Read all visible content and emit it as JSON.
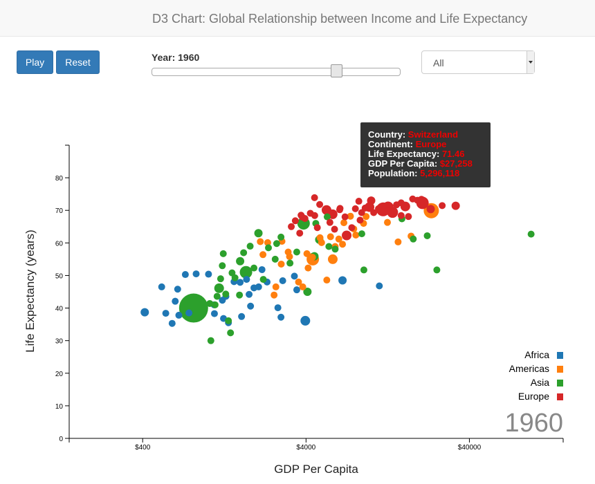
{
  "header": {
    "title": "D3 Chart: Global Relationship between Income and Life Expectancy"
  },
  "controls": {
    "play_label": "Play",
    "reset_label": "Reset",
    "year_label": "Year: 1960",
    "slider_value": 1960,
    "continent_select": "All"
  },
  "tooltip": {
    "country_label": "Country:",
    "country": "Switzerland",
    "continent_label": "Continent:",
    "continent": "Europe",
    "life_label": "Life Expectancy:",
    "life": "71.46",
    "gdp_label": "GDP Per Capita:",
    "gdp": "$27,258",
    "pop_label": "Population:",
    "pop": "5,296,118"
  },
  "colors": {
    "Africa": "#1f77b4",
    "Americas": "#ff7f0e",
    "Asia": "#2ca02c",
    "Europe": "#d62728"
  },
  "chart_data": {
    "type": "scatter",
    "xlabel": "GDP Per Capita",
    "ylabel": "Life Expectancy (years)",
    "x_scale": "log",
    "xlim": [
      142,
      150000
    ],
    "ylim": [
      0,
      90
    ],
    "x_ticks": [
      400,
      4000,
      40000
    ],
    "x_tick_labels": [
      "$400",
      "$4000",
      "$40000"
    ],
    "y_ticks": [
      0,
      10,
      20,
      30,
      40,
      50,
      60,
      70,
      80
    ],
    "year_watermark": "1960",
    "legend": [
      "Africa",
      "Americas",
      "Asia",
      "Europe"
    ],
    "legend_position": "bottom-right",
    "series": [
      {
        "name": "Africa",
        "points": [
          [
            412,
            38.7
          ],
          [
            554,
            38.4
          ],
          [
            633,
            42.1
          ],
          [
            655,
            45.8
          ],
          [
            666,
            37.8
          ],
          [
            730,
            50.3
          ],
          [
            850,
            50.5
          ],
          [
            1012,
            50.4
          ],
          [
            1095,
            41.0
          ],
          [
            1100,
            38.3
          ],
          [
            1250,
            36.8
          ],
          [
            1293,
            43.6
          ],
          [
            1340,
            35.5
          ],
          [
            1580,
            47.9
          ],
          [
            1612,
            37.4
          ],
          [
            1793,
            44.2
          ],
          [
            1830,
            40.6
          ],
          [
            1920,
            46.2
          ],
          [
            2050,
            46.5
          ],
          [
            2310,
            48.0
          ],
          [
            2690,
            40.1
          ],
          [
            2810,
            37.2
          ],
          [
            3395,
            49.8
          ],
          [
            3510,
            45.6
          ],
          [
            3960,
            36.1
          ],
          [
            6690,
            48.5
          ],
          [
            11240,
            46.8
          ],
          [
            1450,
            48.1
          ],
          [
            2150,
            51.8
          ],
          [
            523,
            46.5
          ],
          [
            606,
            35.3
          ],
          [
            1230,
            42.4
          ],
          [
            2880,
            48.4
          ],
          [
            768,
            38.5
          ],
          [
            1730,
            48.8
          ]
        ],
        "sizes": [
          6,
          5,
          5,
          5,
          5,
          5,
          5,
          5,
          5,
          5,
          5,
          5,
          5,
          5,
          5,
          5,
          5,
          5,
          5,
          5,
          5,
          5,
          5,
          5,
          7,
          6,
          5,
          5,
          5,
          5,
          5,
          5,
          5,
          5,
          5
        ]
      },
      {
        "name": "Americas",
        "points": [
          [
            2100,
            60.4
          ],
          [
            2180,
            56.4
          ],
          [
            2330,
            60.1
          ],
          [
            2550,
            44.0
          ],
          [
            2615,
            46.5
          ],
          [
            2820,
            53.5
          ],
          [
            2850,
            60.5
          ],
          [
            3170,
            55.8
          ],
          [
            3600,
            48.0
          ],
          [
            3820,
            46.5
          ],
          [
            4050,
            56.7
          ],
          [
            4120,
            52.3
          ],
          [
            4400,
            55.0
          ],
          [
            4870,
            61.6
          ],
          [
            5360,
            48.6
          ],
          [
            5650,
            61.9
          ],
          [
            5830,
            55.0
          ],
          [
            6350,
            61.2
          ],
          [
            7840,
            64.3
          ],
          [
            8070,
            62.4
          ],
          [
            9330,
            68.1
          ],
          [
            14640,
            60.3
          ],
          [
            17580,
            62.1
          ],
          [
            23380,
            69.9
          ],
          [
            6820,
            66.2
          ],
          [
            4380,
            55.6
          ],
          [
            3110,
            57.2
          ],
          [
            7480,
            68.2
          ],
          [
            9000,
            66.0
          ],
          [
            12600,
            66.3
          ],
          [
            6030,
            58.9
          ],
          [
            4980,
            60.1
          ],
          [
            6690,
            59.6
          ]
        ],
        "sizes": [
          5,
          5,
          5,
          5,
          5,
          5,
          5,
          5,
          5,
          5,
          5,
          5,
          9,
          5,
          5,
          5,
          7,
          5,
          5,
          5,
          5,
          5,
          5,
          11,
          5,
          5,
          5,
          5,
          5,
          5,
          5,
          5,
          5
        ]
      },
      {
        "name": "Asia",
        "points": [
          [
            820,
            40.0
          ],
          [
            1030,
            41.4
          ],
          [
            1046,
            30.0
          ],
          [
            1110,
            41.0
          ],
          [
            1142,
            43.6
          ],
          [
            1175,
            46.1
          ],
          [
            1200,
            49.0
          ],
          [
            1229,
            53.0
          ],
          [
            1246,
            56.7
          ],
          [
            1290,
            44.3
          ],
          [
            1340,
            36.1
          ],
          [
            1380,
            32.4
          ],
          [
            1410,
            50.8
          ],
          [
            1470,
            49.3
          ],
          [
            1566,
            44.0
          ],
          [
            1580,
            54.4
          ],
          [
            1660,
            57.0
          ],
          [
            1716,
            51.0
          ],
          [
            1820,
            59.0
          ],
          [
            1920,
            52.3
          ],
          [
            2045,
            63.0
          ],
          [
            2190,
            48.8
          ],
          [
            2355,
            58.5
          ],
          [
            2590,
            55.0
          ],
          [
            2645,
            59.8
          ],
          [
            2810,
            61.8
          ],
          [
            3190,
            53.8
          ],
          [
            3510,
            57.2
          ],
          [
            3865,
            66.0
          ],
          [
            4500,
            55.9
          ],
          [
            5520,
            58.9
          ],
          [
            6030,
            58.1
          ],
          [
            8780,
            62.8
          ],
          [
            9040,
            51.7
          ],
          [
            15450,
            67.4
          ],
          [
            18130,
            61.2
          ],
          [
            22080,
            62.2
          ],
          [
            25280,
            51.7
          ],
          [
            95460,
            62.7
          ],
          [
            4820,
            61.0
          ],
          [
            4080,
            45.0
          ],
          [
            4590,
            66.0
          ],
          [
            5390,
            68.0
          ]
        ],
        "sizes": [
          21,
          5,
          5,
          5,
          5,
          7,
          5,
          5,
          5,
          5,
          5,
          5,
          5,
          5,
          5,
          6,
          5,
          9,
          5,
          5,
          6,
          5,
          5,
          5,
          5,
          5,
          5,
          5,
          9,
          6,
          5,
          5,
          5,
          5,
          5,
          5,
          5,
          5,
          5,
          6,
          6,
          5,
          5
        ]
      },
      {
        "name": "Europe",
        "points": [
          [
            3250,
            65.0
          ],
          [
            3440,
            66.8
          ],
          [
            3730,
            68.5
          ],
          [
            3660,
            63.0
          ],
          [
            3940,
            67.5
          ],
          [
            4250,
            69.1
          ],
          [
            4520,
            68.4
          ],
          [
            4850,
            71.8
          ],
          [
            5340,
            70.1
          ],
          [
            5600,
            66.3
          ],
          [
            5820,
            68.8
          ],
          [
            6430,
            70.2
          ],
          [
            6930,
            68.0
          ],
          [
            7620,
            64.7
          ],
          [
            8020,
            70.5
          ],
          [
            8570,
            67.0
          ],
          [
            9200,
            70.7
          ],
          [
            10380,
            69.3
          ],
          [
            11860,
            70.3
          ],
          [
            12710,
            71.0
          ],
          [
            13540,
            69.4
          ],
          [
            14320,
            71.7
          ],
          [
            15290,
            68.4
          ],
          [
            16210,
            71.2
          ],
          [
            16940,
            68.1
          ],
          [
            17980,
            73.5
          ],
          [
            20650,
            72.3
          ],
          [
            23180,
            70.4
          ],
          [
            27258,
            71.46
          ],
          [
            32980,
            71.4
          ],
          [
            9780,
            71.0
          ],
          [
            7090,
            62.3
          ],
          [
            5980,
            64.2
          ],
          [
            6460,
            70.6
          ],
          [
            8420,
            72.8
          ],
          [
            11100,
            70.5
          ],
          [
            19210,
            73.1
          ],
          [
            4510,
            73.9
          ],
          [
            20350,
            73.4
          ],
          [
            3800,
            67.9
          ],
          [
            4690,
            64.7
          ],
          [
            8760,
            69.3
          ],
          [
            10020,
            73.0
          ],
          [
            12690,
            69.8
          ],
          [
            15290,
            72.3
          ]
        ],
        "sizes": [
          5,
          5,
          5,
          5,
          5,
          5,
          5,
          5,
          7,
          5,
          7,
          5,
          5,
          5,
          5,
          5,
          5,
          5,
          10,
          8,
          8,
          5,
          5,
          7,
          5,
          5,
          9,
          6,
          5,
          6,
          7,
          7,
          5,
          5,
          5,
          5,
          5,
          5,
          5,
          5,
          5,
          5,
          6,
          5,
          5
        ]
      }
    ]
  }
}
